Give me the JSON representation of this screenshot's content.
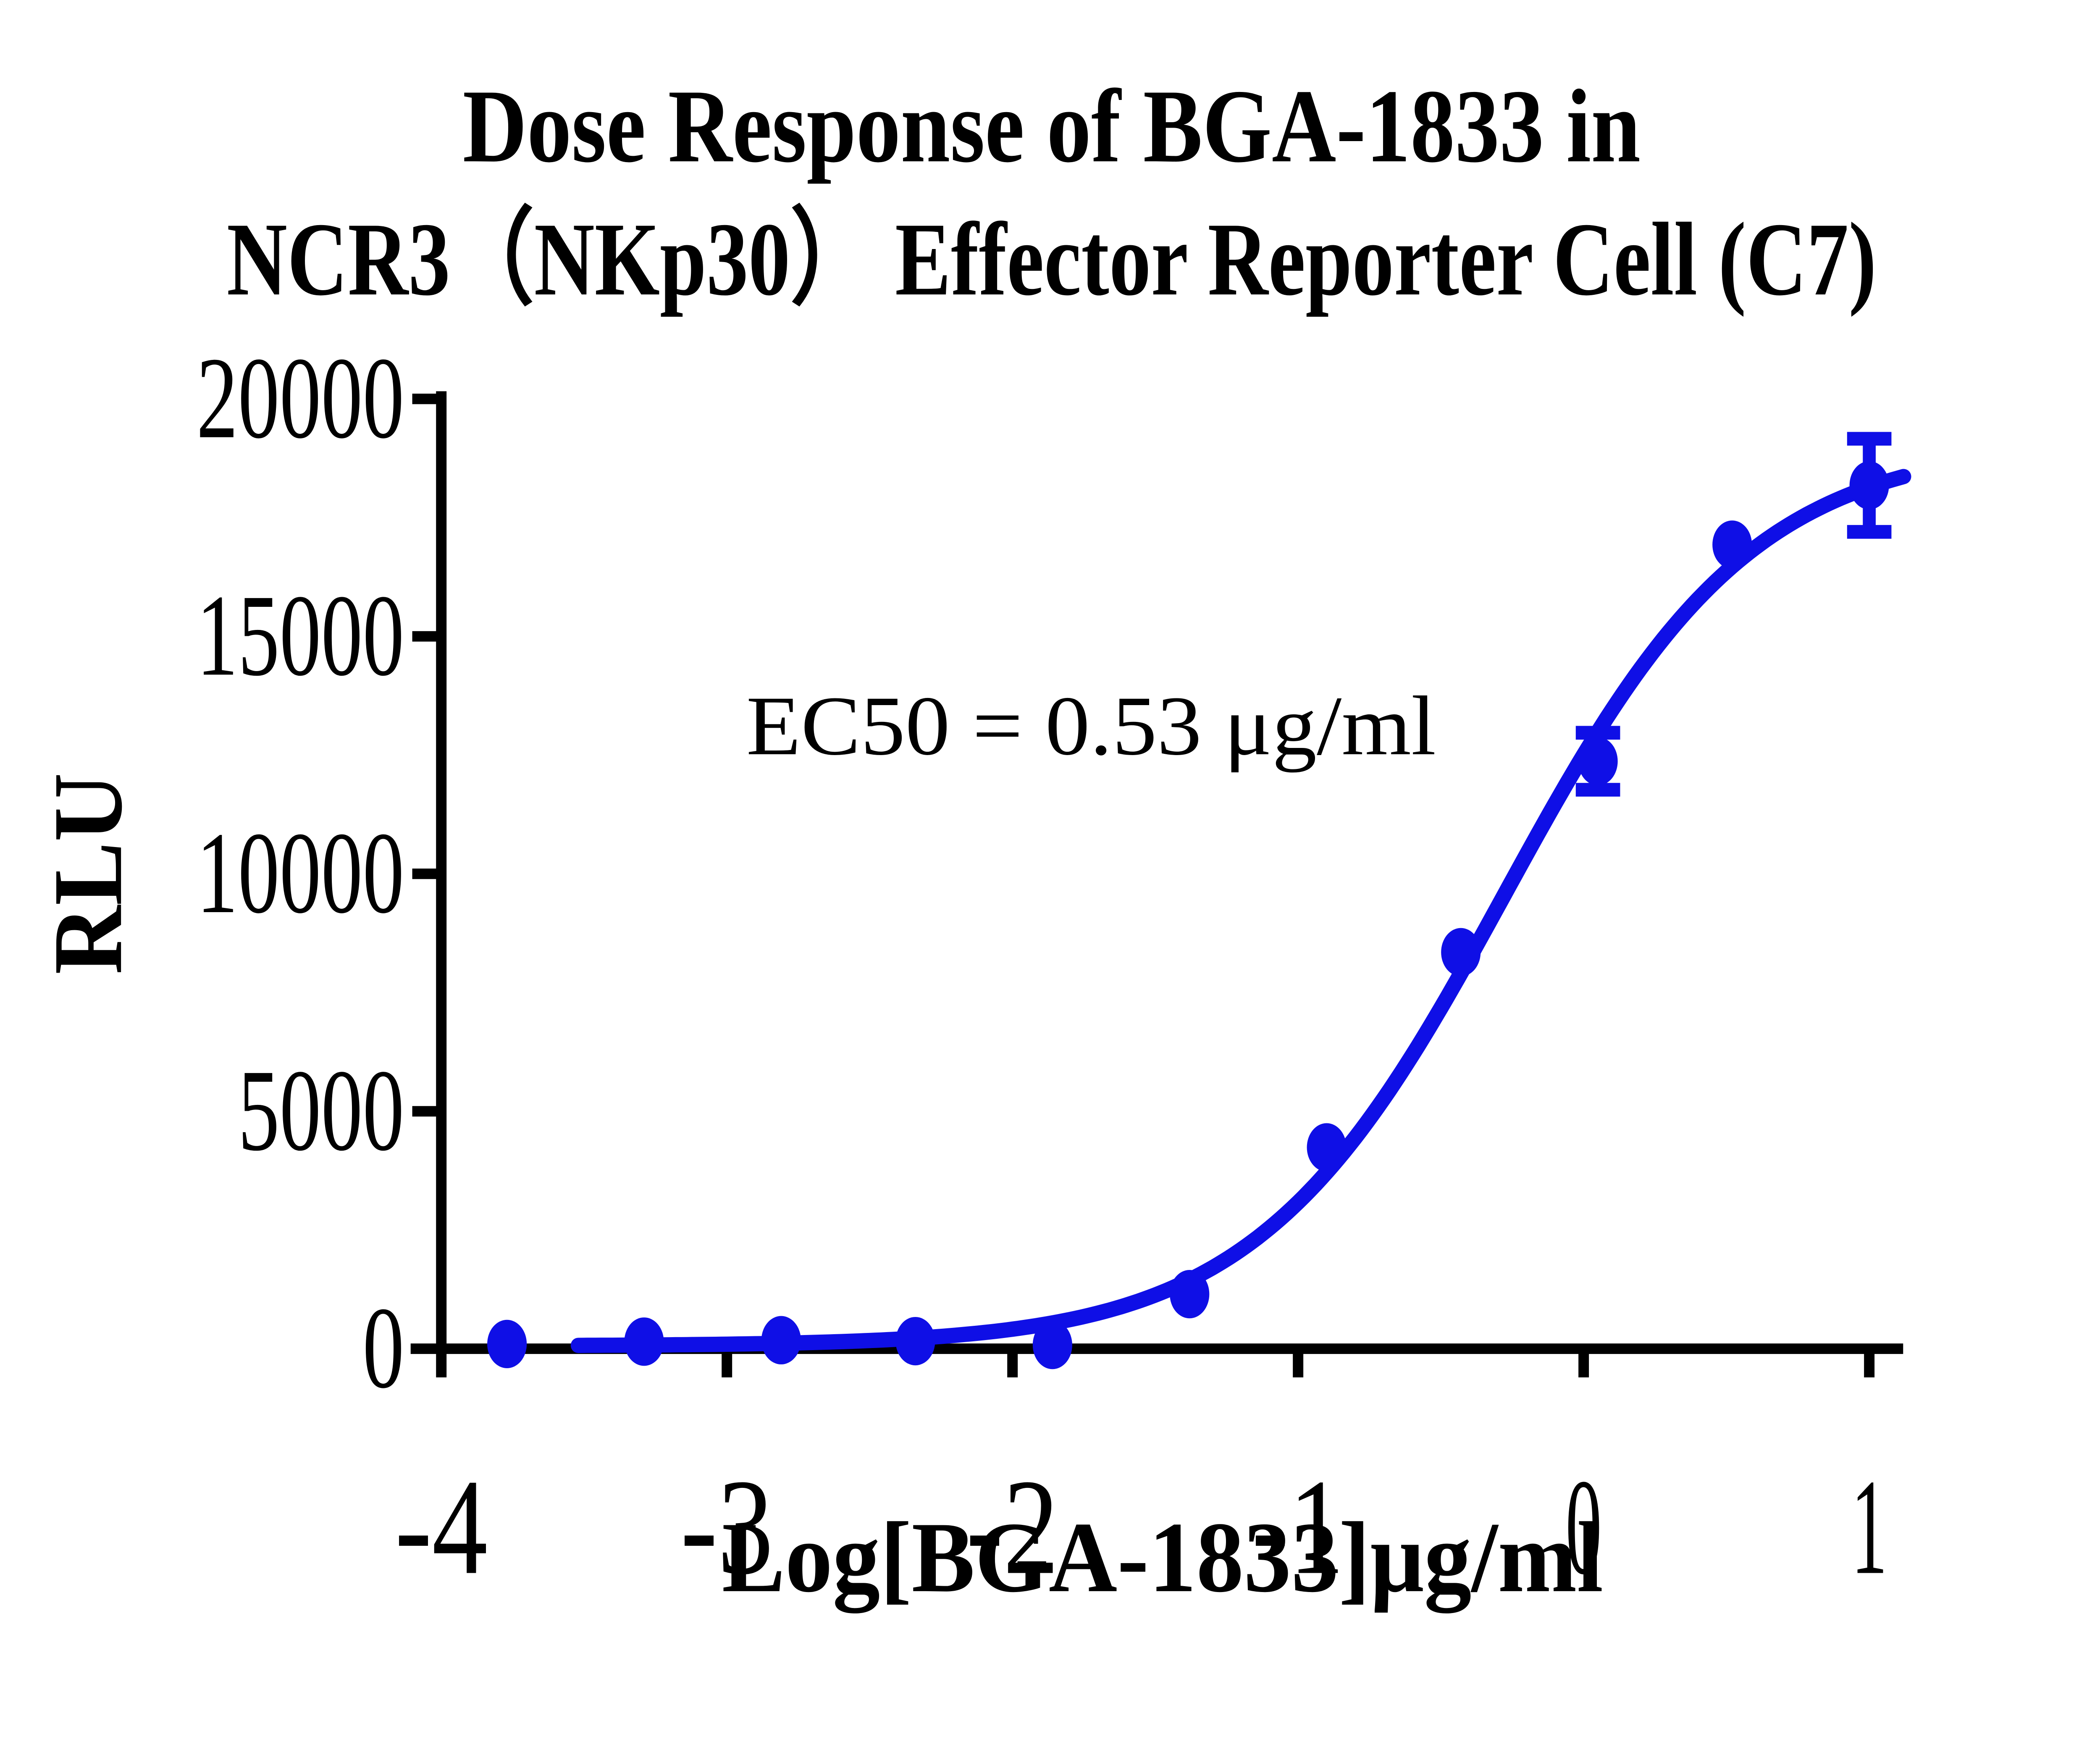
{
  "figure": {
    "title_line1": "Dose Response of BGA-1833 in",
    "title_line2": "NCR3（NKp30） Effector Reporter Cell (C7)",
    "annotation": "EC50 = 0.53 μg/ml",
    "background_color": "#ffffff",
    "text_color": "#000000",
    "series_color": "#0f0fe6"
  },
  "chart_data": {
    "type": "scatter",
    "title": "Dose Response of BGA-1833 in NCR3（NKp30） Effector Reporter Cell (C7)",
    "xlabel": "Log[BGA-1833]μg/ml",
    "ylabel": "RLU",
    "xlim": [
      -4,
      1
    ],
    "ylim": [
      0,
      20000
    ],
    "x_ticks": [
      -4,
      -3,
      -2,
      -1,
      0,
      1
    ],
    "x_tick_labels": [
      "-4",
      "-3",
      "-2",
      "-1",
      "0",
      "1"
    ],
    "y_ticks": [
      0,
      5000,
      10000,
      15000,
      20000
    ],
    "y_tick_labels": [
      "0",
      "5000",
      "10000",
      "15000",
      "20000"
    ],
    "grid": false,
    "legend_position": "none",
    "ec50_annotation": "EC50 = 0.53 μg/ml",
    "ec50_value_ug_ml": 0.53,
    "series": [
      {
        "name": "BGA-1833",
        "marker": "circle",
        "color": "#0f0fe6",
        "points": [
          {
            "x": -3.77,
            "y": 100,
            "err": 0
          },
          {
            "x": -3.29,
            "y": 150,
            "err": 0
          },
          {
            "x": -2.81,
            "y": 180,
            "err": 0
          },
          {
            "x": -2.34,
            "y": 160,
            "err": 0
          },
          {
            "x": -1.86,
            "y": 80,
            "err": 0
          },
          {
            "x": -1.38,
            "y": 1150,
            "err": 0
          },
          {
            "x": -0.9,
            "y": 4240,
            "err": 0
          },
          {
            "x": -0.43,
            "y": 8350,
            "err": 0
          },
          {
            "x": 0.05,
            "y": 12370,
            "err": 600
          },
          {
            "x": 0.52,
            "y": 16930,
            "err": 0
          },
          {
            "x": 1.0,
            "y": 18180,
            "err": 980
          }
        ]
      }
    ],
    "fit_curve": {
      "model": "4PL sigmoidal",
      "bottom": 60,
      "top": 19100,
      "log_ec50": -0.2757,
      "hill_slope": 1.0,
      "x_start": -3.52,
      "x_end": 1.12
    }
  }
}
